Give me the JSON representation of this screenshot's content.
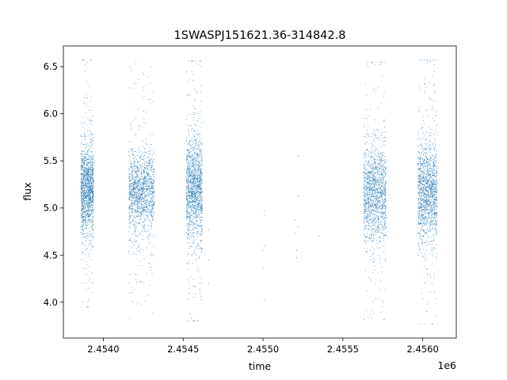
{
  "chart_data": {
    "type": "scatter",
    "title": "1SWASPJ151621.36-314842.8",
    "xlabel": "time",
    "ylabel": "flux",
    "x_offset_label": "1e6",
    "xlim": [
      2.45375,
      2.45621
    ],
    "ylim": [
      3.62,
      6.72
    ],
    "x_ticks": [
      2.454,
      2.4545,
      2.455,
      2.4555,
      2.456
    ],
    "x_tick_labels": [
      "2.4540",
      "2.4545",
      "2.4550",
      "2.4555",
      "2.4560"
    ],
    "y_ticks": [
      4.0,
      4.5,
      5.0,
      5.5,
      6.0,
      6.5
    ],
    "y_tick_labels": [
      "4.0",
      "4.5",
      "5.0",
      "5.5",
      "6.0",
      "6.5"
    ],
    "grid": false,
    "marker_color": "#1f77b4",
    "series": [
      {
        "clusters": [
          {
            "x_range": [
              2.45386,
              2.45394
            ],
            "y_median": 5.18,
            "y_core_spread": 0.22,
            "y_min": 3.95,
            "y_max": 6.57
          },
          {
            "x_range": [
              2.45416,
              2.45432
            ],
            "y_median": 5.18,
            "y_core_spread": 0.2,
            "y_min": 3.83,
            "y_max": 6.55
          },
          {
            "x_range": [
              2.45452,
              2.45462
            ],
            "y_median": 5.2,
            "y_core_spread": 0.26,
            "y_min": 3.8,
            "y_max": 6.56
          },
          {
            "x_range": [
              2.45563,
              2.45577
            ],
            "y_median": 5.15,
            "y_core_spread": 0.25,
            "y_min": 3.82,
            "y_max": 6.55
          },
          {
            "x_range": [
              2.45597,
              2.45609
            ],
            "y_median": 5.18,
            "y_core_spread": 0.26,
            "y_min": 3.77,
            "y_max": 6.57
          }
        ],
        "isolated_points": [
          {
            "x": 2.45466,
            "y": 4.77
          },
          {
            "x": 2.45466,
            "y": 4.45
          },
          {
            "x": 2.45466,
            "y": 4.2
          },
          {
            "x": 2.45501,
            "y": 4.97
          },
          {
            "x": 2.45501,
            "y": 4.93
          },
          {
            "x": 2.45501,
            "y": 4.6
          },
          {
            "x": 2.455,
            "y": 4.55
          },
          {
            "x": 2.455,
            "y": 4.36
          },
          {
            "x": 2.45501,
            "y": 4.02
          },
          {
            "x": 2.4552,
            "y": 4.87
          },
          {
            "x": 2.4552,
            "y": 4.73
          },
          {
            "x": 2.45522,
            "y": 5.55
          },
          {
            "x": 2.45522,
            "y": 5.13
          },
          {
            "x": 2.45522,
            "y": 4.8
          },
          {
            "x": 2.45521,
            "y": 4.55
          },
          {
            "x": 2.45521,
            "y": 4.47
          },
          {
            "x": 2.45535,
            "y": 4.7
          }
        ]
      }
    ]
  }
}
